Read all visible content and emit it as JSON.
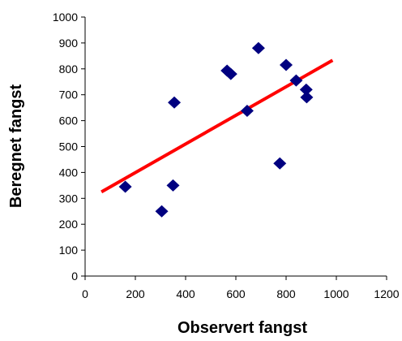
{
  "chart_data": {
    "type": "scatter",
    "title": "",
    "xlabel": "Observert fangst",
    "ylabel": "Beregnet fangst",
    "xlim": [
      0,
      1200
    ],
    "ylim": [
      0,
      1000
    ],
    "xticks": [
      0,
      200,
      400,
      600,
      800,
      1000,
      1200
    ],
    "yticks": [
      0,
      100,
      200,
      300,
      400,
      500,
      600,
      700,
      800,
      900,
      1000
    ],
    "xtick_labels": [
      "0",
      "200",
      "400",
      "600",
      "800",
      "1000",
      "1200"
    ],
    "ytick_labels": [
      "0",
      "100",
      "200",
      "300",
      "400",
      "500",
      "600",
      "700",
      "800",
      "900",
      "1000"
    ],
    "grid": false,
    "legend": "none",
    "series": [
      {
        "type": "scatter",
        "marker": "diamond",
        "color": "#000080",
        "points": [
          {
            "x": 160,
            "y": 345
          },
          {
            "x": 305,
            "y": 250
          },
          {
            "x": 350,
            "y": 350
          },
          {
            "x": 355,
            "y": 670
          },
          {
            "x": 565,
            "y": 793
          },
          {
            "x": 580,
            "y": 780
          },
          {
            "x": 645,
            "y": 638
          },
          {
            "x": 690,
            "y": 880
          },
          {
            "x": 775,
            "y": 435
          },
          {
            "x": 800,
            "y": 815
          },
          {
            "x": 840,
            "y": 755
          },
          {
            "x": 880,
            "y": 720
          },
          {
            "x": 882,
            "y": 690
          }
        ]
      },
      {
        "type": "line",
        "color": "#ff0000",
        "points": [
          {
            "x": 65,
            "y": 325
          },
          {
            "x": 985,
            "y": 833
          }
        ]
      }
    ]
  }
}
